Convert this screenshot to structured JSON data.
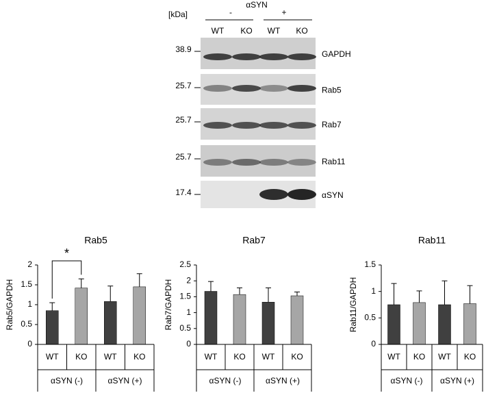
{
  "blot": {
    "unit": "[kDa]",
    "treatment": "αSYN",
    "conditions": [
      "-",
      "+"
    ],
    "lanes": [
      "WT",
      "KO",
      "WT",
      "KO"
    ],
    "bands": [
      {
        "label": "GAPDH",
        "kda": 38.9
      },
      {
        "label": "Rab5",
        "kda": 25.7
      },
      {
        "label": "Rab7",
        "kda": 25.7
      },
      {
        "label": "Rab11",
        "kda": 25.7
      },
      {
        "label": "αSYN",
        "kda": 17.4
      }
    ]
  },
  "chart_data": [
    {
      "type": "bar",
      "title": "Rab5",
      "y_label": "Rab5/GAPDH",
      "categories": [
        "WT",
        "KO",
        "WT",
        "KO"
      ],
      "groups": [
        "αSYN (-)",
        "αSYN (+)"
      ],
      "values": [
        0.85,
        1.42,
        1.08,
        1.45
      ],
      "errors": [
        0.2,
        0.23,
        0.39,
        0.33
      ],
      "colors": [
        "#404040",
        "#a6a6a6",
        "#404040",
        "#a6a6a6"
      ],
      "ylim": [
        0,
        2
      ],
      "yticks": [
        0,
        0.5,
        1,
        1.5,
        2
      ],
      "annotation": "*"
    },
    {
      "type": "bar",
      "title": "Rab7",
      "y_label": "Rab7/GAPDH",
      "categories": [
        "WT",
        "KO",
        "WT",
        "KO"
      ],
      "groups": [
        "αSYN (-)",
        "αSYN (+)"
      ],
      "values": [
        1.67,
        1.57,
        1.33,
        1.53
      ],
      "errors": [
        0.31,
        0.21,
        0.45,
        0.12
      ],
      "colors": [
        "#404040",
        "#a6a6a6",
        "#404040",
        "#a6a6a6"
      ],
      "ylim": [
        0,
        2.5
      ],
      "yticks": [
        0,
        0.5,
        1,
        1.5,
        2,
        2.5
      ]
    },
    {
      "type": "bar",
      "title": "Rab11",
      "y_label": "Rab11/GAPDH",
      "categories": [
        "WT",
        "KO",
        "WT",
        "KO"
      ],
      "groups": [
        "αSYN (-)",
        "αSYN (+)"
      ],
      "values": [
        0.75,
        0.79,
        0.75,
        0.77
      ],
      "errors": [
        0.4,
        0.22,
        0.45,
        0.34
      ],
      "colors": [
        "#404040",
        "#a6a6a6",
        "#404040",
        "#a6a6a6"
      ],
      "ylim": [
        0,
        1.5
      ],
      "yticks": [
        0,
        0.5,
        1,
        1.5
      ]
    }
  ]
}
